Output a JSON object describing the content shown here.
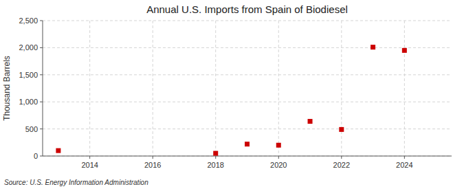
{
  "chart_data": {
    "type": "scatter",
    "title": "Annual U.S. Imports from Spain of Biodiesel",
    "y_label": "Thousand Barrels",
    "source": "Source: U.S. Energy Information Administration",
    "x": [
      2013,
      2018,
      2019,
      2020,
      2021,
      2022,
      2023,
      2024
    ],
    "values": [
      100,
      50,
      220,
      200,
      640,
      490,
      2010,
      1950
    ],
    "color": "#cc0000",
    "marker": "square",
    "xlim": [
      2012.5,
      2025.5
    ],
    "xticks": [
      2014,
      2016,
      2018,
      2020,
      2022,
      2024
    ],
    "ylim": [
      0,
      2500
    ],
    "yticks": [
      0,
      500,
      {
        "value": 1000,
        "label": "1,000"
      },
      {
        "value": 1500,
        "label": "1,500"
      },
      {
        "value": 2000,
        "label": "2,000"
      },
      {
        "value": 2500,
        "label": "2,500"
      }
    ],
    "grid": true
  }
}
